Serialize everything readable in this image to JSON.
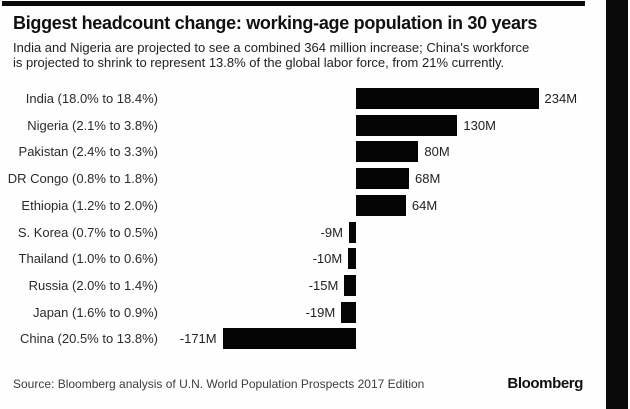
{
  "header": {
    "title": "Biggest headcount change: working-age population in 30 years",
    "subtitle_line1": "India and Nigeria are projected to see a combined 364 million increase; China's workforce",
    "subtitle_line2": "is projected to shrink to represent 13.8% of the global labor force, from 21% currently."
  },
  "chart_data": {
    "type": "bar",
    "orientation": "horizontal",
    "title": "Biggest headcount change: working-age population in 30 years",
    "subtitle": "India and Nigeria are projected to see a combined 364 million increase; China's workforce is projected to shrink to represent 13.8% of the global labor force, from 21% currently.",
    "unit": "millions of people",
    "categories": [
      "India (18.0% to 18.4%)",
      "Nigeria (2.1% to 3.8%)",
      "Pakistan (2.4% to 3.3%)",
      "DR Congo (0.8% to 1.8%)",
      "Ethiopia (1.2% to 2.0%)",
      "S. Korea (0.7% to 0.5%)",
      "Thailand (1.0% to 0.6%)",
      "Russia (2.0% to 1.4%)",
      "Japan (1.6% to 0.9%)",
      "China (20.5% to 13.8%)"
    ],
    "values": [
      234,
      130,
      80,
      68,
      64,
      -9,
      -10,
      -15,
      -19,
      -171
    ],
    "value_labels": [
      "234M",
      "130M",
      "80M",
      "68M",
      "64M",
      "-9M",
      "-10M",
      "-15M",
      "-19M",
      "-171M"
    ],
    "xlabel": "",
    "ylabel": "",
    "xlim": [
      -200,
      260
    ],
    "grid": false,
    "legend": "none",
    "bar_color": "#050505"
  },
  "footer": {
    "source": "Source: Bloomberg analysis of U.N. World Population Prospects 2017 Edition",
    "brand": "Bloomberg"
  }
}
